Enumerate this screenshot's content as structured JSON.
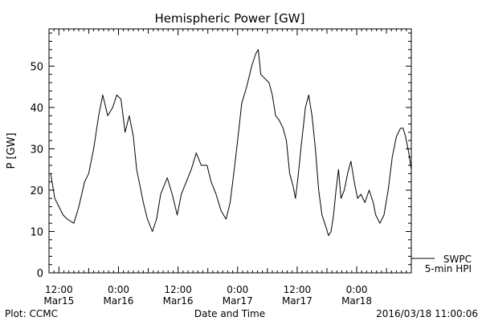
{
  "chart_data": {
    "type": "line",
    "title": "Hemispheric Power [GW]",
    "xlabel": "Date and Time",
    "ylabel": "P [GW]",
    "xlim": [
      "2016-03-15 10:00",
      "2016-03-18 11:00"
    ],
    "ylim": [
      0,
      59
    ],
    "grid": false,
    "y_ticks": [
      0,
      10,
      20,
      30,
      40,
      50
    ],
    "x_ticks": [
      {
        "time": "2016-03-15 12:00",
        "line1": "12:00",
        "line2": "Mar15"
      },
      {
        "time": "2016-03-16 00:00",
        "line1": "0:00",
        "line2": "Mar16"
      },
      {
        "time": "2016-03-16 12:00",
        "line1": "12:00",
        "line2": "Mar16"
      },
      {
        "time": "2016-03-17 00:00",
        "line1": "0:00",
        "line2": "Mar17"
      },
      {
        "time": "2016-03-17 12:00",
        "line1": "12:00",
        "line2": "Mar17"
      },
      {
        "time": "2016-03-18 00:00",
        "line1": "0:00",
        "line2": "Mar18"
      }
    ],
    "legend": [
      "SWPC",
      "5-min HPI"
    ],
    "series": [
      {
        "name": "5-min HPI",
        "points": [
          [
            "2016-03-15 10:20",
            24
          ],
          [
            "2016-03-15 11:10",
            18
          ],
          [
            "2016-03-15 12:00",
            16
          ],
          [
            "2016-03-15 12:50",
            14
          ],
          [
            "2016-03-15 13:40",
            13
          ],
          [
            "2016-03-15 15:00",
            12
          ],
          [
            "2016-03-15 16:00",
            16
          ],
          [
            "2016-03-15 17:10",
            22
          ],
          [
            "2016-03-15 18:00",
            24
          ],
          [
            "2016-03-15 19:00",
            30
          ],
          [
            "2016-03-15 20:00",
            38
          ],
          [
            "2016-03-15 20:50",
            43
          ],
          [
            "2016-03-15 21:50",
            38
          ],
          [
            "2016-03-15 22:50",
            40
          ],
          [
            "2016-03-15 23:40",
            43
          ],
          [
            "2016-03-16 00:30",
            42
          ],
          [
            "2016-03-16 01:20",
            34
          ],
          [
            "2016-03-16 02:10",
            38
          ],
          [
            "2016-03-16 03:00",
            33
          ],
          [
            "2016-03-16 03:40",
            25
          ],
          [
            "2016-03-16 04:20",
            21
          ],
          [
            "2016-03-16 05:00",
            17
          ],
          [
            "2016-03-16 05:50",
            13
          ],
          [
            "2016-03-16 06:50",
            10
          ],
          [
            "2016-03-16 07:40",
            13
          ],
          [
            "2016-03-16 08:30",
            19
          ],
          [
            "2016-03-16 09:50",
            23
          ],
          [
            "2016-03-16 10:50",
            19
          ],
          [
            "2016-03-16 11:50",
            14
          ],
          [
            "2016-03-16 12:40",
            19
          ],
          [
            "2016-03-16 13:40",
            22
          ],
          [
            "2016-03-16 14:40",
            25
          ],
          [
            "2016-03-16 15:40",
            29
          ],
          [
            "2016-03-16 16:40",
            26
          ],
          [
            "2016-03-16 17:50",
            26
          ],
          [
            "2016-03-16 18:40",
            22
          ],
          [
            "2016-03-16 19:40",
            19
          ],
          [
            "2016-03-16 20:40",
            15
          ],
          [
            "2016-03-16 21:40",
            13
          ],
          [
            "2016-03-16 22:30",
            17
          ],
          [
            "2016-03-16 23:20",
            25
          ],
          [
            "2016-03-17 00:00",
            32
          ],
          [
            "2016-03-17 00:50",
            41
          ],
          [
            "2016-03-17 01:50",
            45
          ],
          [
            "2016-03-17 02:50",
            50
          ],
          [
            "2016-03-17 03:40",
            53
          ],
          [
            "2016-03-17 04:10",
            54
          ],
          [
            "2016-03-17 04:40",
            48
          ],
          [
            "2016-03-17 05:30",
            47
          ],
          [
            "2016-03-17 06:20",
            46
          ],
          [
            "2016-03-17 07:00",
            43
          ],
          [
            "2016-03-17 07:40",
            38
          ],
          [
            "2016-03-17 08:20",
            37
          ],
          [
            "2016-03-17 09:10",
            35
          ],
          [
            "2016-03-17 09:50",
            32
          ],
          [
            "2016-03-17 10:30",
            24
          ],
          [
            "2016-03-17 11:10",
            21
          ],
          [
            "2016-03-17 11:40",
            18
          ],
          [
            "2016-03-17 12:10",
            23
          ],
          [
            "2016-03-17 12:50",
            31
          ],
          [
            "2016-03-17 13:40",
            40
          ],
          [
            "2016-03-17 14:20",
            43
          ],
          [
            "2016-03-17 15:00",
            38
          ],
          [
            "2016-03-17 15:40",
            30
          ],
          [
            "2016-03-17 16:20",
            20
          ],
          [
            "2016-03-17 17:00",
            14
          ],
          [
            "2016-03-17 17:50",
            11
          ],
          [
            "2016-03-17 18:20",
            9
          ],
          [
            "2016-03-17 18:50",
            10
          ],
          [
            "2016-03-17 19:20",
            14
          ],
          [
            "2016-03-17 19:50",
            20
          ],
          [
            "2016-03-17 20:20",
            25
          ],
          [
            "2016-03-17 20:50",
            18
          ],
          [
            "2016-03-17 21:30",
            20
          ],
          [
            "2016-03-17 22:10",
            24
          ],
          [
            "2016-03-17 22:50",
            27
          ],
          [
            "2016-03-17 23:30",
            22
          ],
          [
            "2016-03-18 00:10",
            18
          ],
          [
            "2016-03-18 00:50",
            19
          ],
          [
            "2016-03-18 01:40",
            17
          ],
          [
            "2016-03-18 02:30",
            20
          ],
          [
            "2016-03-18 03:20",
            17
          ],
          [
            "2016-03-18 03:50",
            14
          ],
          [
            "2016-03-18 04:40",
            12
          ],
          [
            "2016-03-18 05:30",
            14
          ],
          [
            "2016-03-18 06:20",
            20
          ],
          [
            "2016-03-18 07:10",
            28
          ],
          [
            "2016-03-18 08:00",
            33
          ],
          [
            "2016-03-18 08:50",
            35
          ],
          [
            "2016-03-18 09:20",
            35
          ],
          [
            "2016-03-18 09:50",
            33
          ],
          [
            "2016-03-18 10:30",
            29
          ],
          [
            "2016-03-18 11:00",
            25
          ]
        ]
      }
    ]
  },
  "footer": {
    "left": "Plot: CCMC",
    "right": "2016/03/18 11:00:06"
  }
}
